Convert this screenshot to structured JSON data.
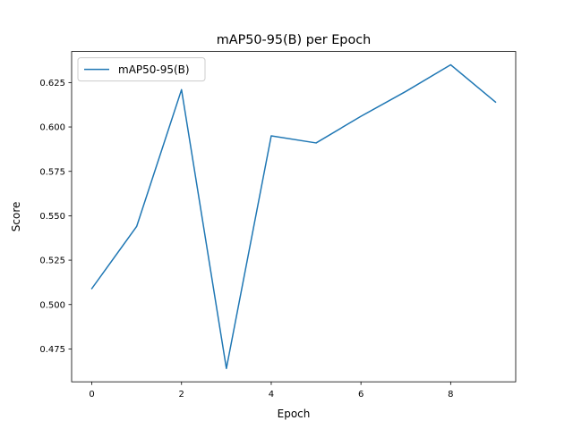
{
  "chart_data": {
    "type": "line",
    "title": "mAP50-95(B) per Epoch",
    "xlabel": "Epoch",
    "ylabel": "Score",
    "xlim": [
      -0.45,
      9.45
    ],
    "ylim": [
      0.4565,
      0.6425
    ],
    "x_ticks": [
      0,
      2,
      4,
      6,
      8
    ],
    "y_ticks": [
      0.475,
      0.5,
      0.525,
      0.55,
      0.575,
      0.6,
      0.625
    ],
    "x_tick_labels": [
      "0",
      "2",
      "4",
      "6",
      "8"
    ],
    "y_tick_labels": [
      "0.475",
      "0.500",
      "0.525",
      "0.550",
      "0.575",
      "0.600",
      "0.625"
    ],
    "grid": false,
    "legend_position": "top-left",
    "series": [
      {
        "name": "mAP50-95(B)",
        "color": "#1f77b4",
        "x": [
          0,
          1,
          2,
          3,
          4,
          5,
          6,
          7,
          8,
          9
        ],
        "values": [
          0.509,
          0.544,
          0.621,
          0.464,
          0.595,
          0.591,
          0.606,
          0.62,
          0.635,
          0.614
        ]
      }
    ]
  }
}
